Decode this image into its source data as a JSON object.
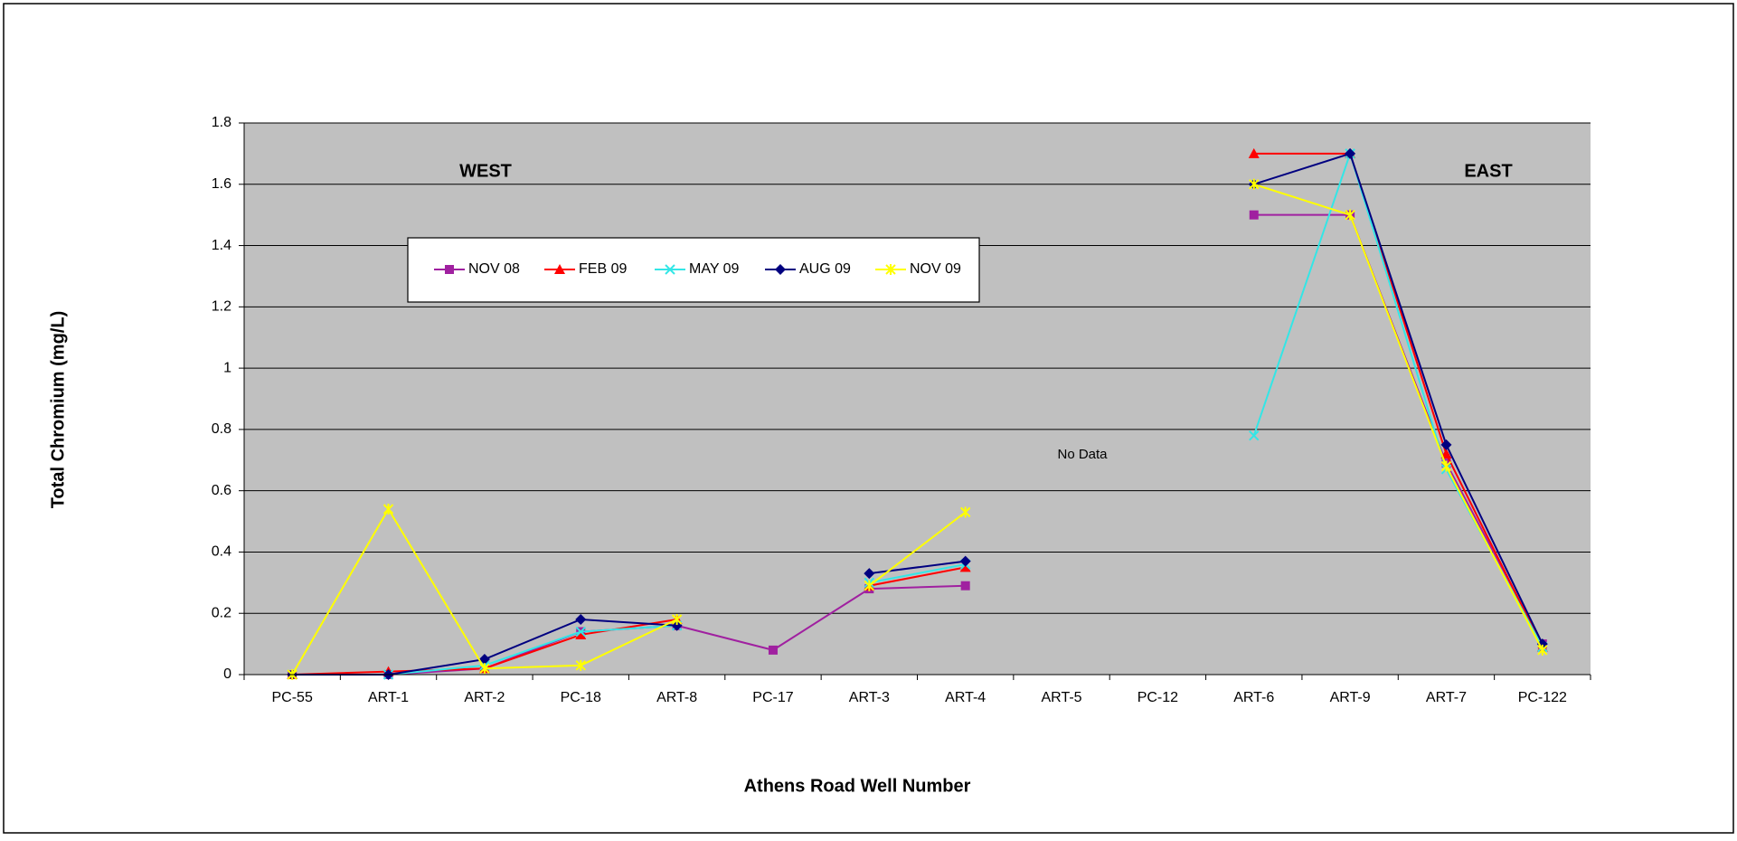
{
  "chart_data": {
    "type": "line",
    "x_label": "Athens Road Well Number",
    "y_label": "Total Chromium (mg/L)",
    "annotations": [
      "WEST",
      "EAST",
      "No Data"
    ],
    "categories": [
      "PC-55",
      "ART-1",
      "ART-2",
      "PC-18",
      "ART-8",
      "PC-17",
      "ART-3",
      "ART-4",
      "ART-5",
      "PC-12",
      "ART-6",
      "ART-9",
      "ART-7",
      "PC-122"
    ],
    "ylim": [
      0,
      1.8
    ],
    "yticks": [
      0,
      0.2,
      0.4,
      0.6,
      0.8,
      1,
      1.2,
      1.4,
      1.6,
      1.8
    ],
    "grid": true,
    "series": [
      {
        "name": "NOV 08",
        "color": "#a020a0",
        "marker": "square",
        "values": [
          0,
          0,
          0.02,
          0.14,
          0.16,
          0.08,
          0.28,
          0.29,
          null,
          null,
          1.5,
          1.5,
          0.69,
          0.1
        ]
      },
      {
        "name": "FEB 09",
        "color": "#ff0000",
        "marker": "triangle",
        "values": [
          0,
          0.01,
          0.02,
          0.13,
          0.18,
          null,
          0.29,
          0.35,
          null,
          null,
          1.7,
          1.7,
          0.72,
          0.09
        ]
      },
      {
        "name": "MAY 09",
        "color": "#33e6e6",
        "marker": "x",
        "values": [
          0,
          0,
          0.03,
          0.14,
          0.16,
          null,
          0.3,
          0.36,
          null,
          null,
          0.78,
          1.7,
          0.67,
          0.09
        ]
      },
      {
        "name": "AUG 09",
        "color": "#000080",
        "marker": "diamond",
        "values": [
          0,
          0,
          0.05,
          0.18,
          0.16,
          null,
          0.33,
          0.37,
          null,
          null,
          1.6,
          1.7,
          0.75,
          0.1
        ]
      },
      {
        "name": "NOV 09",
        "color": "#ffff00",
        "marker": "star",
        "values": [
          0,
          0.54,
          0.02,
          0.03,
          0.18,
          null,
          0.29,
          0.53,
          null,
          null,
          1.6,
          1.5,
          0.68,
          0.08
        ]
      }
    ]
  }
}
